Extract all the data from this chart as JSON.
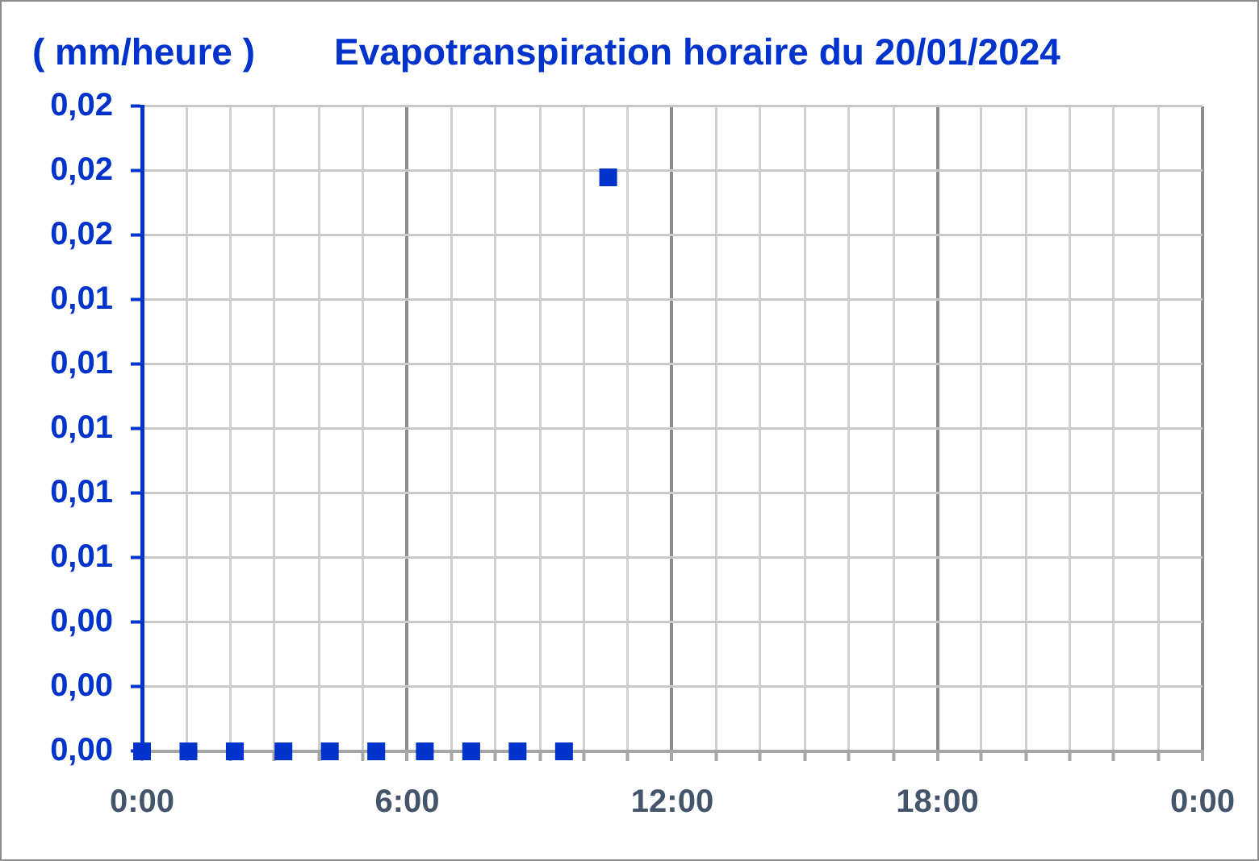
{
  "chart_data": {
    "type": "scatter",
    "title": "Evapotranspiration horaire du 20/01/2024",
    "ylabel": "( mm/heure )",
    "x": [
      0,
      1.05,
      2.1,
      3.2,
      4.25,
      5.3,
      6.4,
      7.45,
      8.5,
      9.55,
      10.55
    ],
    "values": [
      0,
      0,
      0,
      0,
      0,
      0,
      0,
      0,
      0,
      0,
      0.0178
    ],
    "color": "#0033cc",
    "marker": "square",
    "xlim": [
      0,
      24
    ],
    "xticks": [
      {
        "value": 0,
        "label": "0:00"
      },
      {
        "value": 1,
        "label": null
      },
      {
        "value": 2,
        "label": null
      },
      {
        "value": 3,
        "label": null
      },
      {
        "value": 4,
        "label": null
      },
      {
        "value": 5,
        "label": null
      },
      {
        "value": 6,
        "label": "6:00"
      },
      {
        "value": 7,
        "label": null
      },
      {
        "value": 8,
        "label": null
      },
      {
        "value": 9,
        "label": null
      },
      {
        "value": 10,
        "label": null
      },
      {
        "value": 11,
        "label": null
      },
      {
        "value": 12,
        "label": "12:00"
      },
      {
        "value": 13,
        "label": null
      },
      {
        "value": 14,
        "label": null
      },
      {
        "value": 15,
        "label": null
      },
      {
        "value": 16,
        "label": null
      },
      {
        "value": 17,
        "label": null
      },
      {
        "value": 18,
        "label": "18:00"
      },
      {
        "value": 19,
        "label": null
      },
      {
        "value": 20,
        "label": null
      },
      {
        "value": 21,
        "label": null
      },
      {
        "value": 22,
        "label": null
      },
      {
        "value": 23,
        "label": null
      },
      {
        "value": 24,
        "label": "0:00"
      }
    ],
    "ylim": [
      0,
      0.02
    ],
    "yticks": [
      {
        "value": 0,
        "label": "0,00"
      },
      {
        "value": 0.002,
        "label": "0,00"
      },
      {
        "value": 0.004,
        "label": "0,00"
      },
      {
        "value": 0.006,
        "label": "0,01"
      },
      {
        "value": 0.008,
        "label": "0,01"
      },
      {
        "value": 0.01,
        "label": "0,01"
      },
      {
        "value": 0.012,
        "label": "0,01"
      },
      {
        "value": 0.014,
        "label": "0,01"
      },
      {
        "value": 0.016,
        "label": "0,02"
      },
      {
        "value": 0.018,
        "label": "0,02"
      },
      {
        "value": 0.02,
        "label": "0,02"
      }
    ],
    "grid": true
  }
}
